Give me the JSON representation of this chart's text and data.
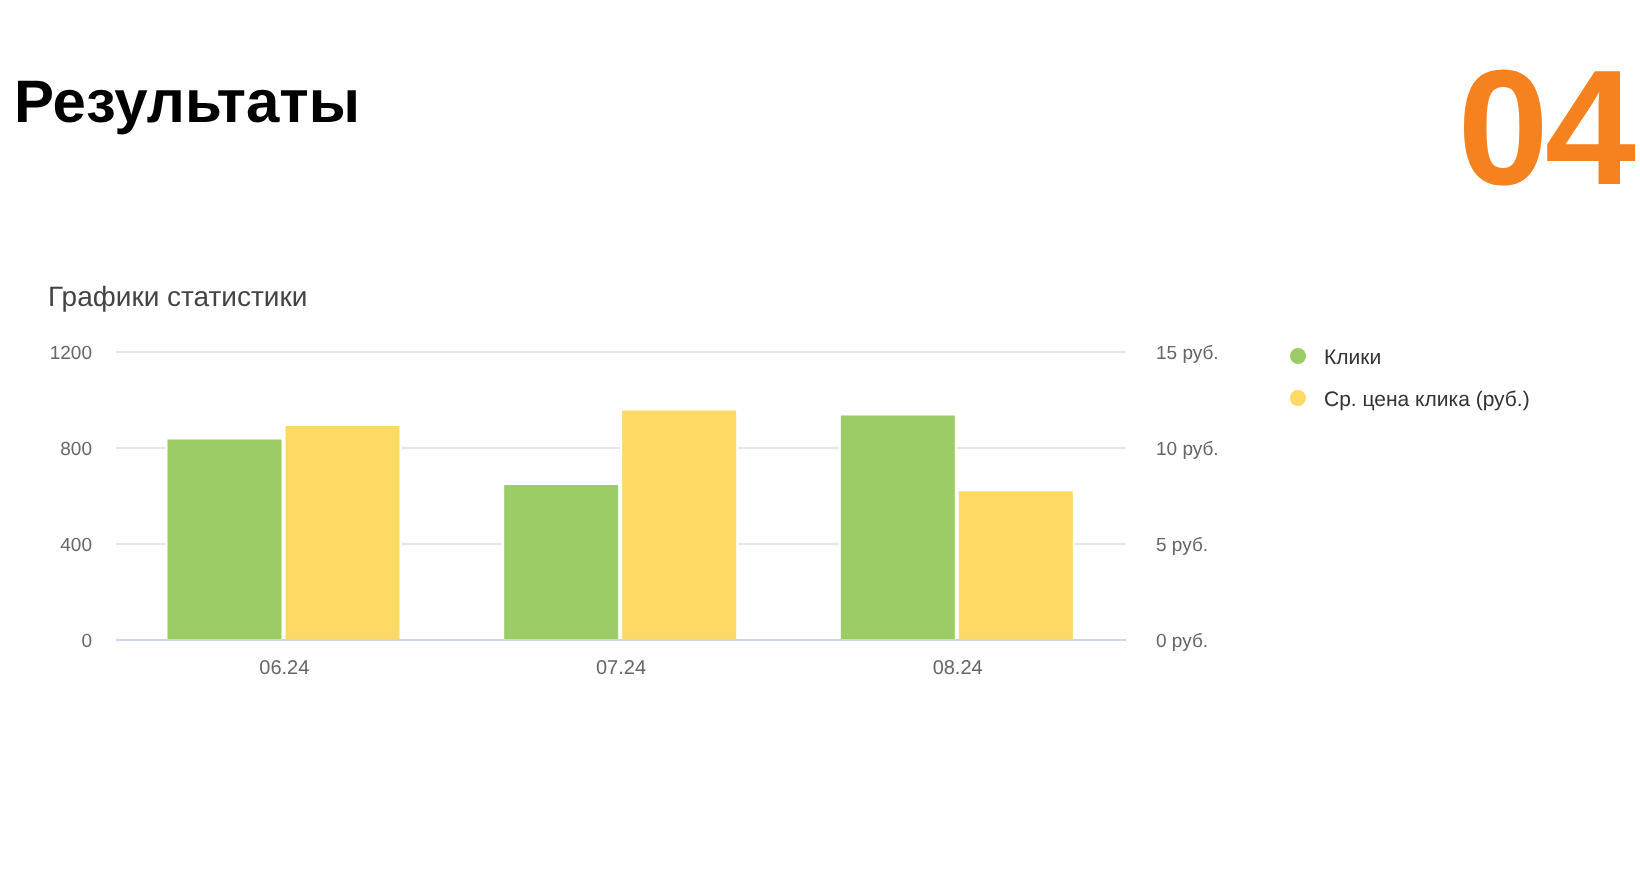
{
  "chart_data": {
    "type": "bar",
    "title": "Результаты",
    "subtitle": "Графики статистики",
    "annotations": [
      "04"
    ],
    "categories": [
      "06.24",
      "07.24",
      "08.24"
    ],
    "series": [
      {
        "name": "Клики",
        "color": "#9bcc65",
        "values": [
          840,
          650,
          940
        ]
      },
      {
        "name": "Ср. цена клика (руб.)",
        "color": "#ffd966",
        "values": [
          11.2,
          12,
          7.8
        ],
        "axis": "y2"
      }
    ],
    "ylim": [
      0,
      1200
    ],
    "yticks": [
      0,
      400,
      800,
      1200
    ],
    "y2lim": [
      0,
      15
    ],
    "y2ticks": [
      {
        "value": 0,
        "label": "0 руб."
      },
      {
        "value": 5,
        "label": "5 руб."
      },
      {
        "value": 10,
        "label": "10 руб."
      },
      {
        "value": 15,
        "label": "15 руб."
      }
    ],
    "grid": "y",
    "legend": "top right"
  }
}
